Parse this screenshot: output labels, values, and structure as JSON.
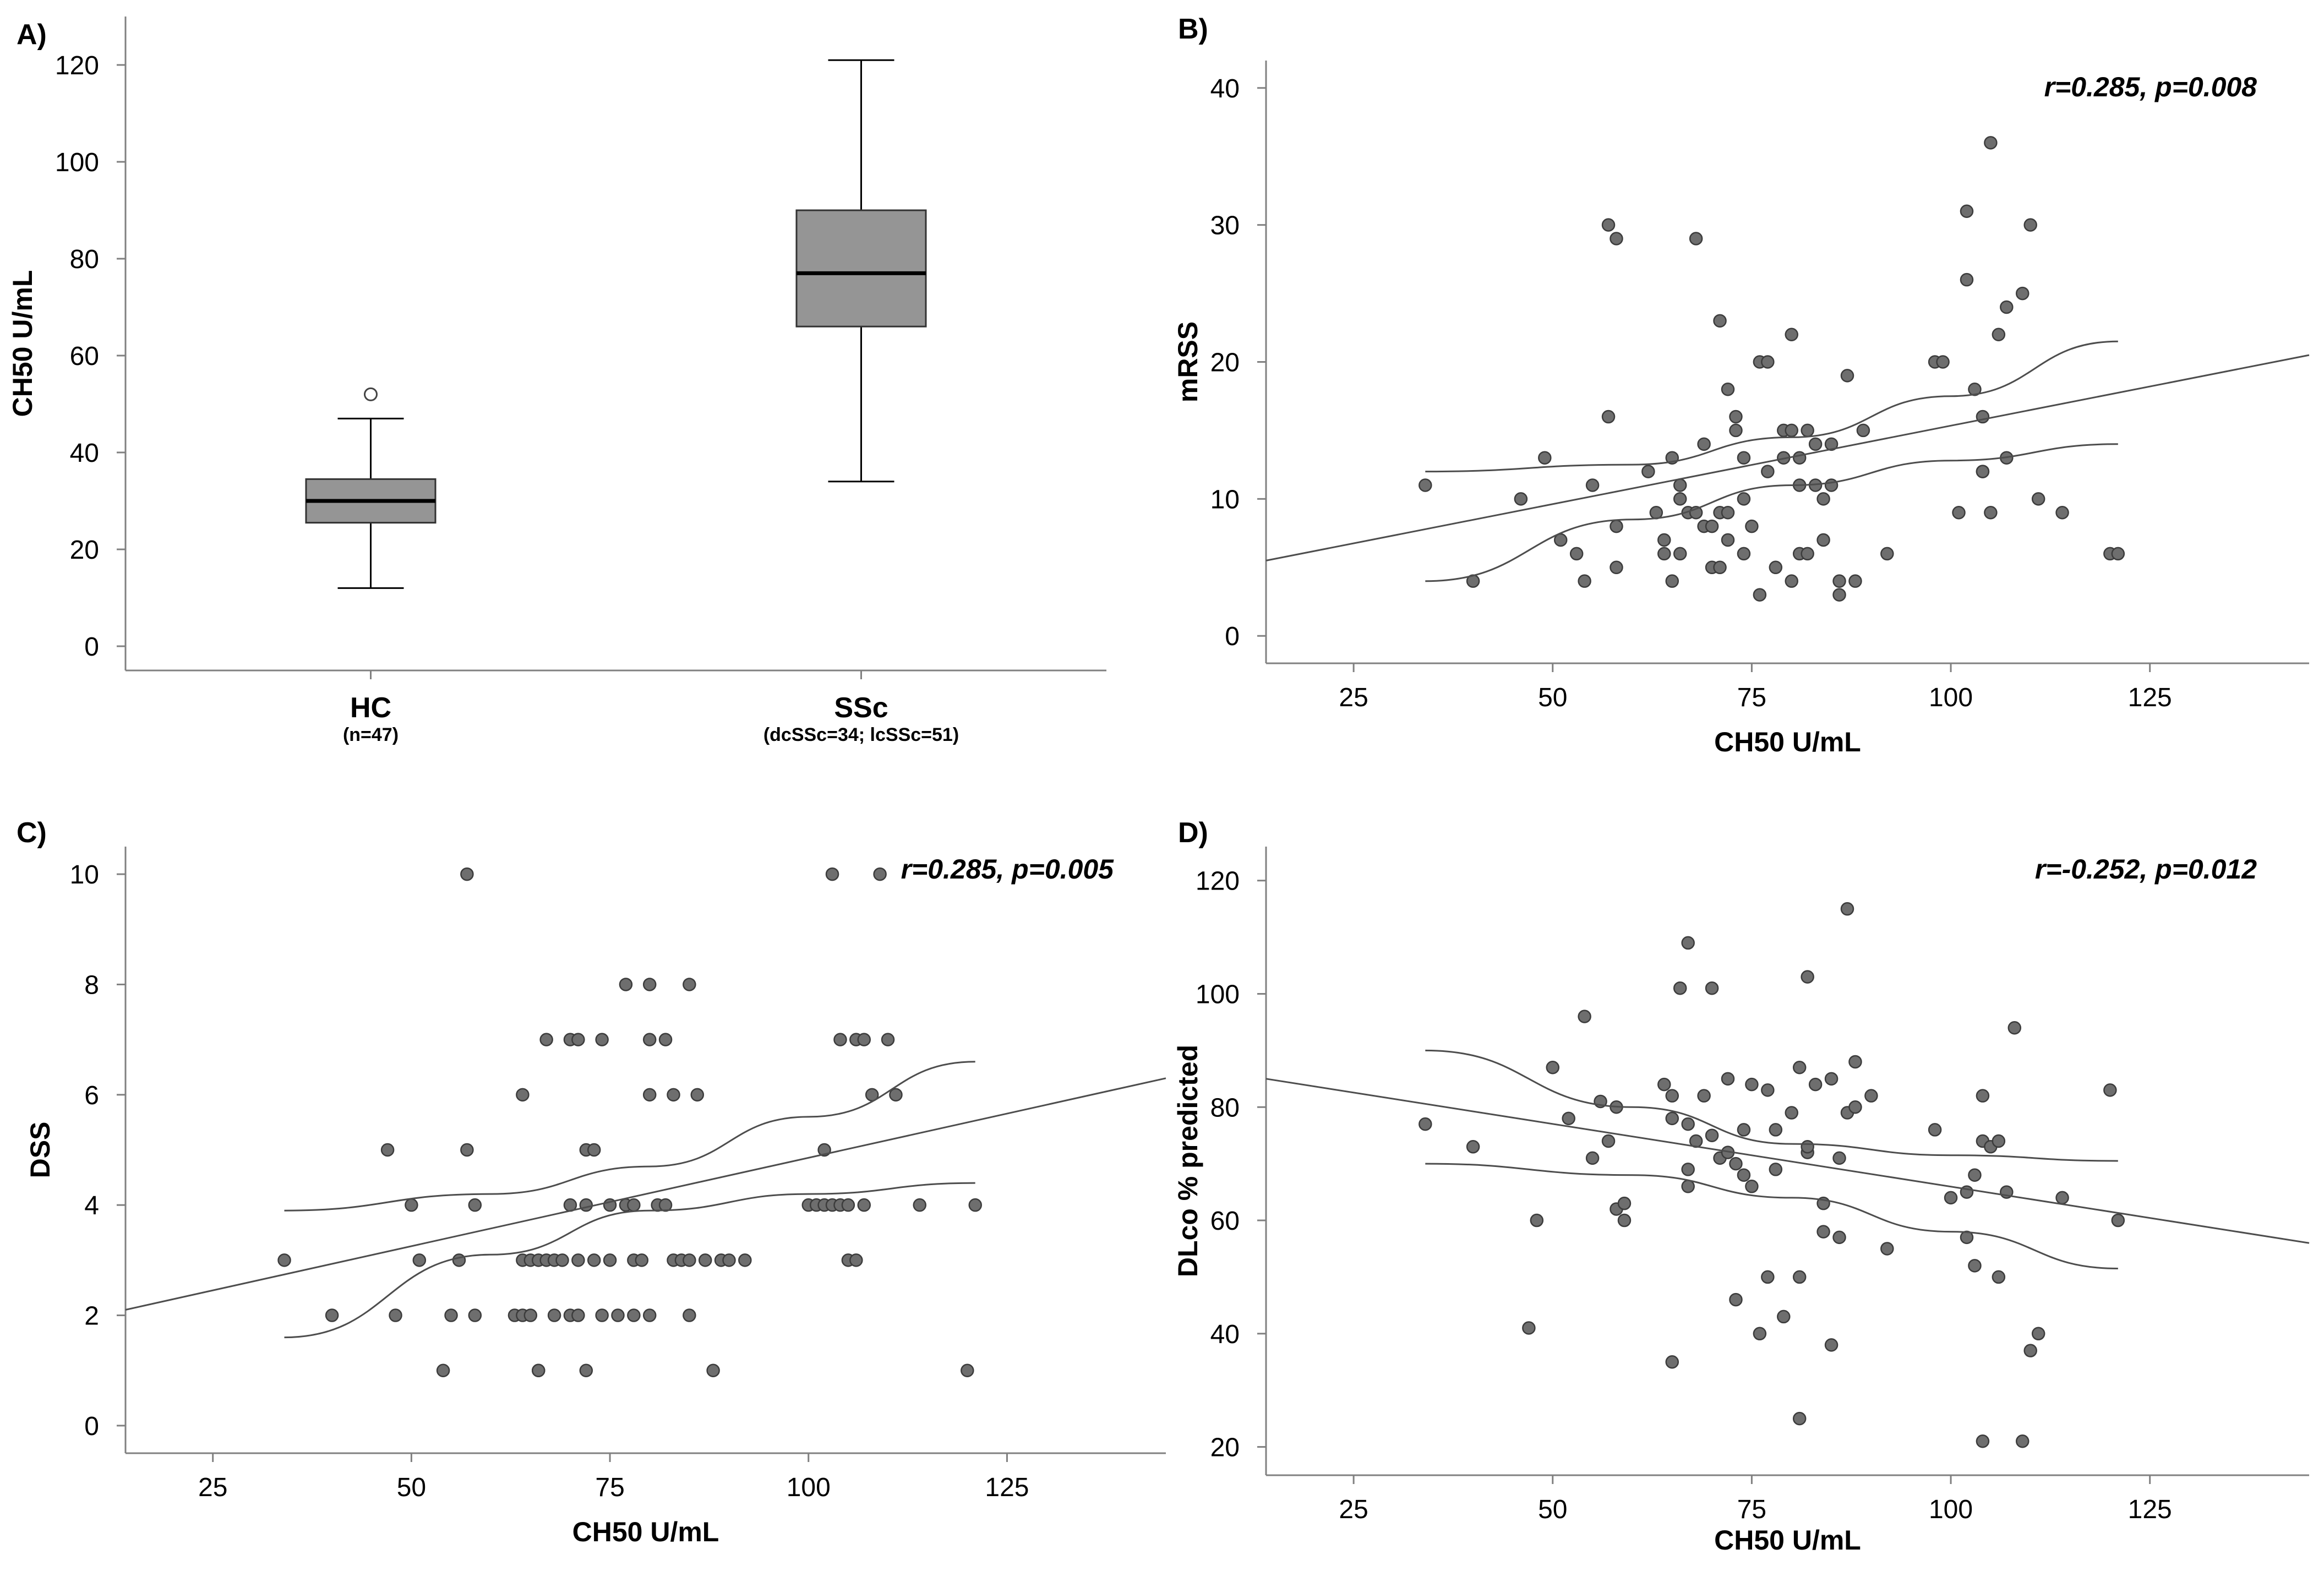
{
  "colors": {
    "box": "#959595",
    "point": "#6e6e6e",
    "pointStroke": "#3c3c3c",
    "line": "#4d4d4d",
    "axis": "#808080"
  },
  "chart_data": [
    {
      "panel": "A)",
      "type": "box",
      "ylabel": "CH50  U/mL",
      "ylim": [
        -5,
        130
      ],
      "yticks": [
        0,
        20,
        40,
        60,
        80,
        100,
        120
      ],
      "groups": [
        {
          "label": "HC",
          "sublabel": "(n=47)",
          "whisker_low": 12,
          "q1": 25.5,
          "median": 30,
          "q3": 34.5,
          "whisker_high": 47,
          "outliers": [
            52
          ]
        },
        {
          "label": "SSc",
          "sublabel": "(dcSSc=34; lcSSc=51)",
          "whisker_low": 34,
          "q1": 66,
          "median": 77,
          "q3": 90,
          "whisker_high": 121,
          "outliers": []
        }
      ]
    },
    {
      "panel": "B)",
      "type": "scatter",
      "xlabel": "CH50 U/mL",
      "ylabel": "mRSS",
      "annotation": "r=0.285, p=0.008",
      "xlim": [
        14,
        145
      ],
      "ylim": [
        -2,
        42
      ],
      "xticks": [
        25,
        50,
        75,
        100,
        125
      ],
      "yticks": [
        0,
        10,
        20,
        30,
        40
      ],
      "fit": [
        [
          14,
          5.5
        ],
        [
          145,
          20.5
        ]
      ],
      "ci_upper": [
        [
          34,
          12
        ],
        [
          60,
          12.5
        ],
        [
          80,
          14.5
        ],
        [
          100,
          17.5
        ],
        [
          121,
          21.5
        ]
      ],
      "ci_lower": [
        [
          34,
          4
        ],
        [
          60,
          8.5
        ],
        [
          80,
          11
        ],
        [
          100,
          12.8
        ],
        [
          121,
          14
        ]
      ],
      "points": [
        [
          34,
          11
        ],
        [
          40,
          4
        ],
        [
          46,
          10
        ],
        [
          49,
          13
        ],
        [
          51,
          7
        ],
        [
          53,
          6
        ],
        [
          54,
          4
        ],
        [
          55,
          11
        ],
        [
          57,
          30
        ],
        [
          58,
          29
        ],
        [
          57,
          16
        ],
        [
          58,
          8
        ],
        [
          58,
          5
        ],
        [
          62,
          12
        ],
        [
          63,
          9
        ],
        [
          64,
          6
        ],
        [
          64,
          7
        ],
        [
          65,
          13
        ],
        [
          65,
          4
        ],
        [
          66,
          10
        ],
        [
          66,
          11
        ],
        [
          66,
          6
        ],
        [
          67,
          9
        ],
        [
          68,
          9
        ],
        [
          68,
          29
        ],
        [
          69,
          14
        ],
        [
          69,
          8
        ],
        [
          70,
          5
        ],
        [
          70,
          8
        ],
        [
          71,
          9
        ],
        [
          71,
          5
        ],
        [
          71,
          23
        ],
        [
          72,
          18
        ],
        [
          72,
          9
        ],
        [
          72,
          7
        ],
        [
          73,
          16
        ],
        [
          73,
          15
        ],
        [
          74,
          6
        ],
        [
          74,
          10
        ],
        [
          74,
          13
        ],
        [
          75,
          8
        ],
        [
          76,
          3
        ],
        [
          76,
          20
        ],
        [
          77,
          20
        ],
        [
          77,
          12
        ],
        [
          78,
          5
        ],
        [
          79,
          13
        ],
        [
          79,
          15
        ],
        [
          80,
          22
        ],
        [
          80,
          15
        ],
        [
          80,
          4
        ],
        [
          81,
          11
        ],
        [
          81,
          13
        ],
        [
          81,
          6
        ],
        [
          82,
          6
        ],
        [
          82,
          15
        ],
        [
          83,
          14
        ],
        [
          83,
          11
        ],
        [
          84,
          7
        ],
        [
          84,
          10
        ],
        [
          85,
          14
        ],
        [
          85,
          11
        ],
        [
          86,
          3
        ],
        [
          86,
          4
        ],
        [
          87,
          19
        ],
        [
          88,
          4
        ],
        [
          89,
          15
        ],
        [
          92,
          6
        ],
        [
          98,
          20
        ],
        [
          99,
          20
        ],
        [
          101,
          9
        ],
        [
          102,
          26
        ],
        [
          102,
          31
        ],
        [
          103,
          18
        ],
        [
          104,
          12
        ],
        [
          104,
          16
        ],
        [
          104,
          12
        ],
        [
          105,
          36
        ],
        [
          105,
          9
        ],
        [
          106,
          22
        ],
        [
          107,
          24
        ],
        [
          107,
          13
        ],
        [
          109,
          25
        ],
        [
          110,
          30
        ],
        [
          111,
          10
        ],
        [
          114,
          9
        ],
        [
          120,
          6
        ],
        [
          121,
          6
        ]
      ]
    },
    {
      "panel": "C)",
      "type": "scatter",
      "xlabel": "CH50 U/mL",
      "ylabel": "DSS",
      "annotation": "r=0.285, p=0.005",
      "xlim": [
        14,
        145
      ],
      "ylim": [
        -0.5,
        10.5
      ],
      "xticks": [
        25,
        50,
        75,
        100,
        125
      ],
      "yticks": [
        0,
        2,
        4,
        6,
        8,
        10
      ],
      "fit": [
        [
          14,
          2.1
        ],
        [
          145,
          6.3
        ]
      ],
      "ci_upper": [
        [
          34,
          3.9
        ],
        [
          60,
          4.2
        ],
        [
          80,
          4.7
        ],
        [
          100,
          5.6
        ],
        [
          121,
          6.6
        ]
      ],
      "ci_lower": [
        [
          34,
          1.6
        ],
        [
          60,
          3.1
        ],
        [
          80,
          3.9
        ],
        [
          100,
          4.2
        ],
        [
          121,
          4.4
        ]
      ],
      "points": [
        [
          34,
          3
        ],
        [
          40,
          2
        ],
        [
          47,
          5
        ],
        [
          48,
          2
        ],
        [
          50,
          4
        ],
        [
          51,
          3
        ],
        [
          54,
          1
        ],
        [
          55,
          2
        ],
        [
          56,
          3
        ],
        [
          57,
          10
        ],
        [
          57,
          5
        ],
        [
          58,
          2
        ],
        [
          58,
          4
        ],
        [
          63,
          2
        ],
        [
          64,
          6
        ],
        [
          64,
          3
        ],
        [
          64,
          2
        ],
        [
          65,
          3
        ],
        [
          65,
          2
        ],
        [
          66,
          1
        ],
        [
          66,
          1
        ],
        [
          66,
          3
        ],
        [
          67,
          7
        ],
        [
          67,
          3
        ],
        [
          68,
          3
        ],
        [
          68,
          2
        ],
        [
          69,
          3
        ],
        [
          70,
          7
        ],
        [
          70,
          4
        ],
        [
          70,
          2
        ],
        [
          71,
          2
        ],
        [
          71,
          3
        ],
        [
          71,
          7
        ],
        [
          72,
          5
        ],
        [
          72,
          1
        ],
        [
          72,
          4
        ],
        [
          73,
          5
        ],
        [
          73,
          3
        ],
        [
          74,
          7
        ],
        [
          74,
          2
        ],
        [
          75,
          4
        ],
        [
          75,
          3
        ],
        [
          76,
          2
        ],
        [
          77,
          4
        ],
        [
          77,
          8
        ],
        [
          78,
          4
        ],
        [
          78,
          3
        ],
        [
          78,
          2
        ],
        [
          79,
          3
        ],
        [
          80,
          8
        ],
        [
          80,
          6
        ],
        [
          80,
          7
        ],
        [
          80,
          2
        ],
        [
          81,
          4
        ],
        [
          82,
          7
        ],
        [
          82,
          4
        ],
        [
          83,
          3
        ],
        [
          83,
          6
        ],
        [
          84,
          3
        ],
        [
          85,
          8
        ],
        [
          85,
          2
        ],
        [
          85,
          3
        ],
        [
          86,
          6
        ],
        [
          87,
          3
        ],
        [
          88,
          1
        ],
        [
          89,
          3
        ],
        [
          90,
          3
        ],
        [
          92,
          3
        ],
        [
          100,
          4
        ],
        [
          101,
          4
        ],
        [
          102,
          5
        ],
        [
          102,
          4
        ],
        [
          103,
          10
        ],
        [
          103,
          4
        ],
        [
          104,
          4
        ],
        [
          104,
          7
        ],
        [
          105,
          3
        ],
        [
          105,
          4
        ],
        [
          106,
          7
        ],
        [
          106,
          3
        ],
        [
          107,
          7
        ],
        [
          107,
          4
        ],
        [
          108,
          6
        ],
        [
          109,
          10
        ],
        [
          110,
          7
        ],
        [
          111,
          6
        ],
        [
          114,
          4
        ],
        [
          120,
          1
        ],
        [
          121,
          4
        ]
      ]
    },
    {
      "panel": "D)",
      "type": "scatter",
      "xlabel": "CH50 U/mL",
      "ylabel": "DLco % predicted",
      "annotation": "r=-0.252, p=0.012",
      "xlim": [
        14,
        145
      ],
      "ylim": [
        15,
        126
      ],
      "xticks": [
        25,
        50,
        75,
        100,
        125
      ],
      "yticks": [
        20,
        40,
        60,
        80,
        100,
        120
      ],
      "fit": [
        [
          14,
          85
        ],
        [
          145,
          56
        ]
      ],
      "ci_upper": [
        [
          34,
          90
        ],
        [
          60,
          80
        ],
        [
          80,
          73.5
        ],
        [
          100,
          71.5
        ],
        [
          121,
          70.5
        ]
      ],
      "ci_lower": [
        [
          34,
          70
        ],
        [
          60,
          68
        ],
        [
          80,
          64
        ],
        [
          100,
          58
        ],
        [
          121,
          51.5
        ]
      ],
      "points": [
        [
          34,
          77
        ],
        [
          40,
          73
        ],
        [
          47,
          41
        ],
        [
          48,
          60
        ],
        [
          50,
          87
        ],
        [
          52,
          78
        ],
        [
          54,
          96
        ],
        [
          55,
          71
        ],
        [
          56,
          81
        ],
        [
          57,
          74
        ],
        [
          58,
          80
        ],
        [
          58,
          62
        ],
        [
          59,
          63
        ],
        [
          59,
          60
        ],
        [
          64,
          84
        ],
        [
          65,
          78
        ],
        [
          65,
          82
        ],
        [
          65,
          35
        ],
        [
          66,
          101
        ],
        [
          67,
          109
        ],
        [
          67,
          66
        ],
        [
          67,
          69
        ],
        [
          67,
          77
        ],
        [
          68,
          74
        ],
        [
          69,
          82
        ],
        [
          70,
          75
        ],
        [
          70,
          101
        ],
        [
          71,
          71
        ],
        [
          72,
          85
        ],
        [
          72,
          72
        ],
        [
          73,
          70
        ],
        [
          73,
          46
        ],
        [
          74,
          68
        ],
        [
          74,
          76
        ],
        [
          75,
          84
        ],
        [
          75,
          66
        ],
        [
          76,
          40
        ],
        [
          77,
          83
        ],
        [
          77,
          50
        ],
        [
          78,
          76
        ],
        [
          78,
          69
        ],
        [
          79,
          43
        ],
        [
          80,
          79
        ],
        [
          81,
          25
        ],
        [
          81,
          50
        ],
        [
          81,
          87
        ],
        [
          82,
          72
        ],
        [
          82,
          103
        ],
        [
          82,
          73
        ],
        [
          83,
          84
        ],
        [
          84,
          63
        ],
        [
          84,
          58
        ],
        [
          85,
          38
        ],
        [
          85,
          85
        ],
        [
          86,
          71
        ],
        [
          86,
          57
        ],
        [
          87,
          79
        ],
        [
          87,
          115
        ],
        [
          88,
          80
        ],
        [
          88,
          88
        ],
        [
          90,
          82
        ],
        [
          92,
          55
        ],
        [
          98,
          76
        ],
        [
          100,
          64
        ],
        [
          102,
          65
        ],
        [
          102,
          57
        ],
        [
          103,
          52
        ],
        [
          103,
          68
        ],
        [
          104,
          21
        ],
        [
          104,
          82
        ],
        [
          104,
          74
        ],
        [
          105,
          73
        ],
        [
          106,
          50
        ],
        [
          106,
          74
        ],
        [
          107,
          65
        ],
        [
          108,
          94
        ],
        [
          109,
          21
        ],
        [
          110,
          37
        ],
        [
          111,
          40
        ],
        [
          114,
          64
        ],
        [
          120,
          83
        ],
        [
          121,
          60
        ]
      ]
    }
  ]
}
